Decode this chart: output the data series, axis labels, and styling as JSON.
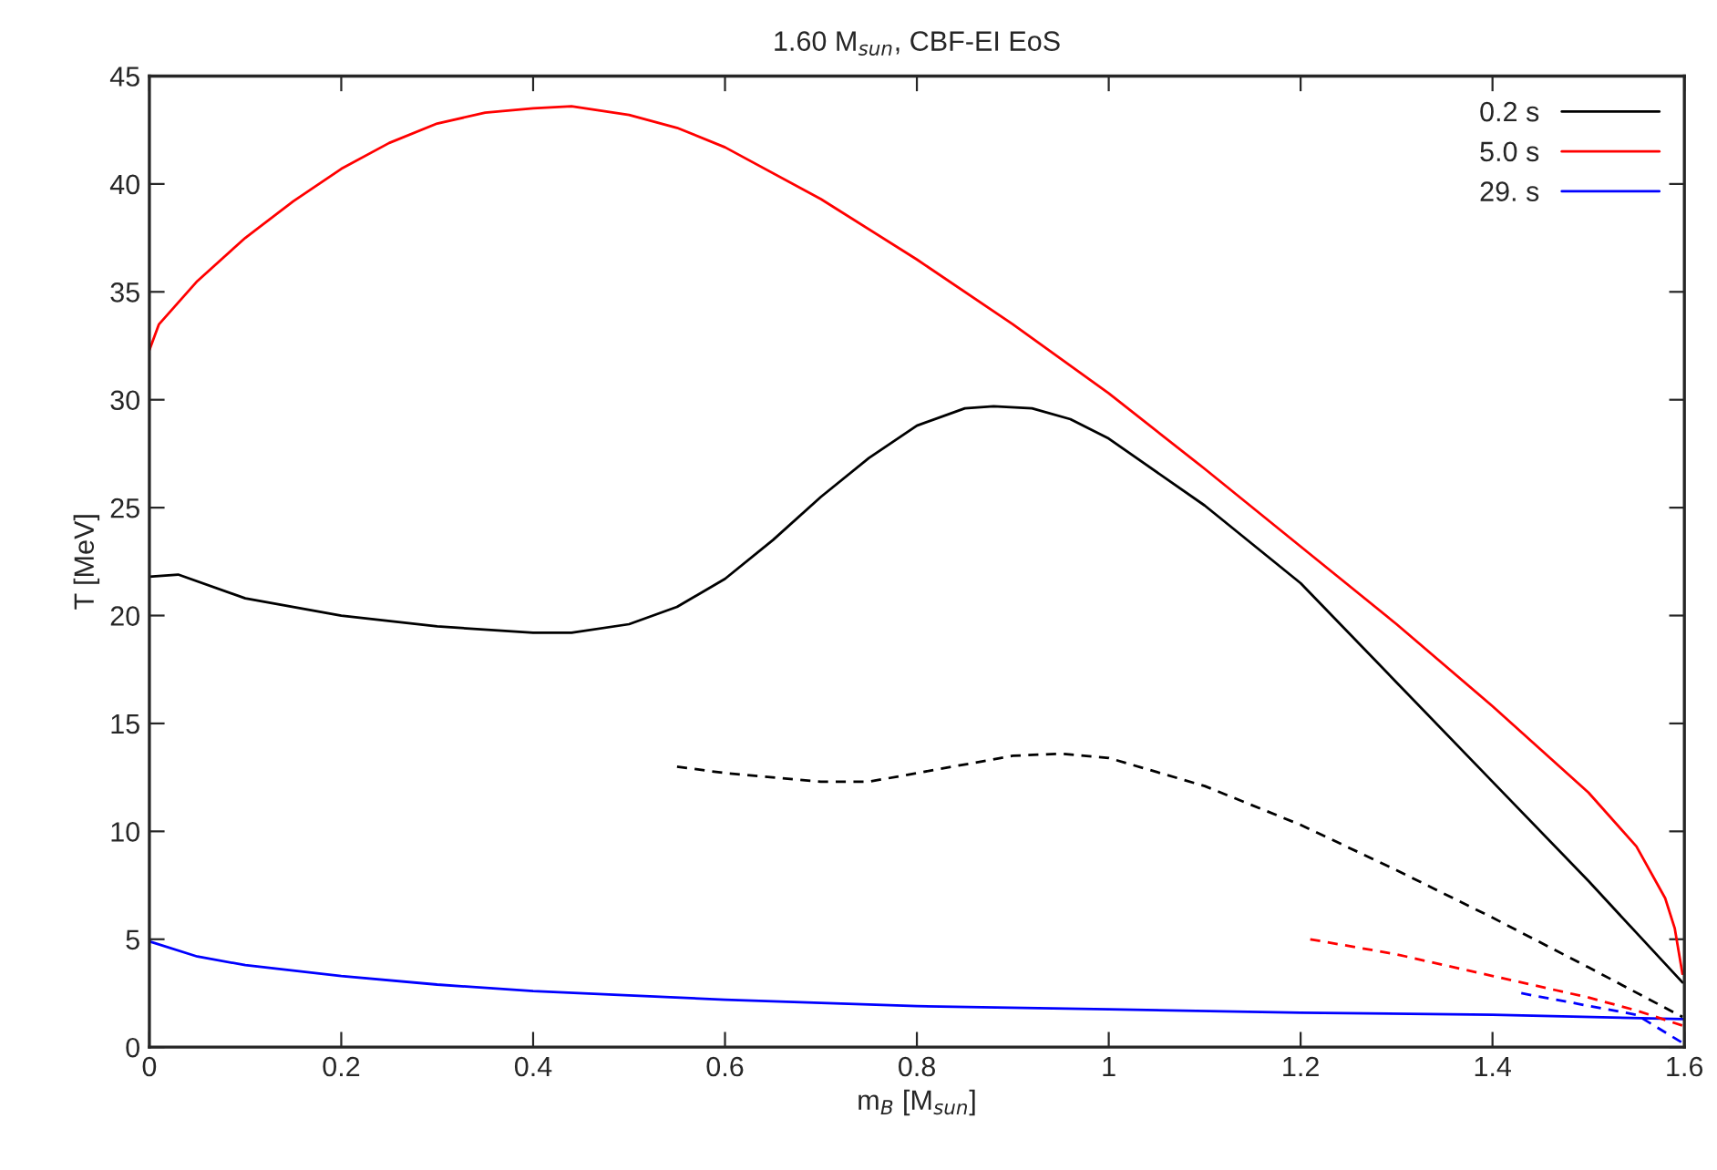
{
  "chart_data": {
    "type": "line",
    "title": "1.60 M$_{sun}$, CBF-EI EoS",
    "xlabel": "m$_{B}$ [M$_{sun}$]",
    "ylabel": "T [MeV]",
    "xlim": [
      0,
      1.6
    ],
    "ylim": [
      0,
      45
    ],
    "xticks": [
      0,
      0.2,
      0.4,
      0.6,
      0.8,
      1,
      1.2,
      1.4,
      1.6
    ],
    "yticks": [
      0,
      5,
      10,
      15,
      20,
      25,
      30,
      35,
      40,
      45
    ],
    "legend": "top right",
    "grid": false,
    "series": [
      {
        "name": "0.2 s",
        "color": "#000000",
        "line_style": "solid",
        "x": [
          0,
          0.03,
          0.1,
          0.2,
          0.3,
          0.4,
          0.44,
          0.5,
          0.55,
          0.6,
          0.65,
          0.7,
          0.75,
          0.8,
          0.85,
          0.88,
          0.92,
          0.96,
          1.0,
          1.1,
          1.2,
          1.3,
          1.4,
          1.5,
          1.55,
          1.598
        ],
        "values": [
          21.8,
          21.9,
          20.8,
          20.0,
          19.5,
          19.2,
          19.2,
          19.6,
          20.4,
          21.7,
          23.5,
          25.5,
          27.3,
          28.8,
          29.6,
          29.7,
          29.6,
          29.1,
          28.2,
          25.1,
          21.5,
          16.9,
          12.3,
          7.7,
          5.3,
          3.0
        ]
      },
      {
        "name": "5.0 s",
        "color": "#ff0000",
        "line_style": "solid",
        "x": [
          0,
          0.01,
          0.05,
          0.1,
          0.15,
          0.2,
          0.25,
          0.3,
          0.35,
          0.4,
          0.44,
          0.5,
          0.55,
          0.6,
          0.7,
          0.8,
          0.9,
          1.0,
          1.1,
          1.2,
          1.3,
          1.4,
          1.5,
          1.55,
          1.58,
          1.59,
          1.598
        ],
        "values": [
          32.3,
          33.5,
          35.5,
          37.5,
          39.2,
          40.7,
          41.9,
          42.8,
          43.3,
          43.5,
          43.6,
          43.2,
          42.6,
          41.7,
          39.3,
          36.5,
          33.5,
          30.3,
          26.8,
          23.2,
          19.6,
          15.8,
          11.8,
          9.3,
          6.9,
          5.5,
          3.4
        ]
      },
      {
        "name": "29. s",
        "color": "#0000ff",
        "line_style": "solid",
        "x": [
          0,
          0.05,
          0.1,
          0.2,
          0.3,
          0.4,
          0.5,
          0.6,
          0.8,
          1.0,
          1.2,
          1.4,
          1.598
        ],
        "values": [
          4.9,
          4.2,
          3.8,
          3.3,
          2.9,
          2.6,
          2.4,
          2.2,
          1.9,
          1.75,
          1.6,
          1.5,
          1.3
        ]
      },
      {
        "color": "#000000",
        "line_style": "dashed",
        "x": [
          0.55,
          0.6,
          0.7,
          0.75,
          0.8,
          0.9,
          0.95,
          1.0,
          1.1,
          1.2,
          1.3,
          1.4,
          1.5,
          1.598
        ],
        "values": [
          13.0,
          12.7,
          12.3,
          12.3,
          12.7,
          13.5,
          13.6,
          13.4,
          12.1,
          10.3,
          8.2,
          6.0,
          3.7,
          1.4
        ]
      },
      {
        "color": "#ff0000",
        "line_style": "dashed",
        "x": [
          1.21,
          1.3,
          1.4,
          1.5,
          1.55,
          1.598
        ],
        "values": [
          5.0,
          4.3,
          3.3,
          2.3,
          1.7,
          1.0
        ]
      },
      {
        "color": "#0000ff",
        "line_style": "dashed",
        "x": [
          1.43,
          1.49,
          1.55,
          1.598
        ],
        "values": [
          2.5,
          2.0,
          1.5,
          0.2
        ]
      }
    ]
  }
}
